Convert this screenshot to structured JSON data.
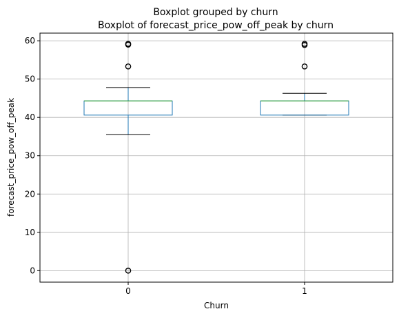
{
  "chart_data": {
    "type": "box",
    "suptitle": "Boxplot grouped by churn",
    "title": "Boxplot of forecast_price_pow_off_peak by churn",
    "xlabel": "Churn",
    "ylabel": "forecast_price_pow_off_peak",
    "categories": [
      "0",
      "1"
    ],
    "ylim": [
      -3,
      62
    ],
    "yticks": [
      0,
      10,
      20,
      30,
      40,
      50,
      60
    ],
    "grid": true,
    "boxes": [
      {
        "category": "0",
        "whisker_low": 35.5,
        "q1": 40.6,
        "median": 44.3,
        "q3": 44.3,
        "whisker_high": 47.8,
        "outliers": [
          0,
          53.3,
          59.0,
          59.2
        ]
      },
      {
        "category": "1",
        "whisker_low": 40.6,
        "q1": 40.6,
        "median": 44.3,
        "q3": 44.3,
        "whisker_high": 46.3,
        "outliers": [
          53.3,
          58.9,
          59.2
        ]
      }
    ],
    "colors": {
      "box": "#1f77b4",
      "median": "#2ca02c",
      "whisker": "#1f77b4",
      "cap": "#000000",
      "outlier": "#000000",
      "grid": "#b0b0b0"
    }
  }
}
